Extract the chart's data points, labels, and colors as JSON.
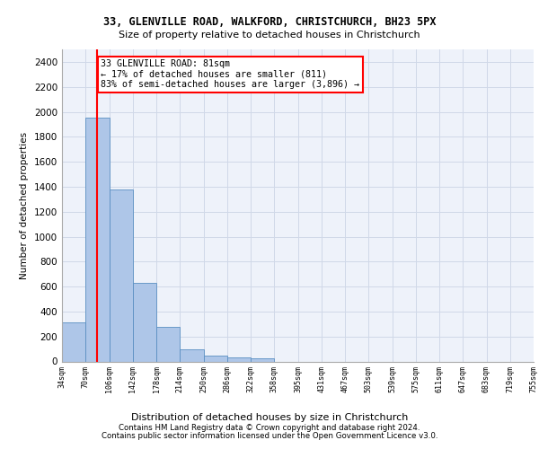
{
  "title1": "33, GLENVILLE ROAD, WALKFORD, CHRISTCHURCH, BH23 5PX",
  "title2": "Size of property relative to detached houses in Christchurch",
  "xlabel": "Distribution of detached houses by size in Christchurch",
  "ylabel": "Number of detached properties",
  "bar_values": [
    315,
    1950,
    1380,
    630,
    275,
    100,
    48,
    32,
    25,
    0,
    0,
    0,
    0,
    0,
    0,
    0,
    0,
    0,
    0,
    0
  ],
  "bin_labels": [
    "34sqm",
    "70sqm",
    "106sqm",
    "142sqm",
    "178sqm",
    "214sqm",
    "250sqm",
    "286sqm",
    "322sqm",
    "358sqm",
    "395sqm",
    "431sqm",
    "467sqm",
    "503sqm",
    "539sqm",
    "575sqm",
    "611sqm",
    "647sqm",
    "683sqm",
    "719sqm",
    "755sqm"
  ],
  "bar_color": "#aec6e8",
  "bar_edge_color": "#5a8fc2",
  "red_line_bin": 1,
  "annotation_text": "33 GLENVILLE ROAD: 81sqm\n← 17% of detached houses are smaller (811)\n83% of semi-detached houses are larger (3,896) →",
  "annotation_box_color": "white",
  "annotation_box_edge_color": "red",
  "red_line_color": "red",
  "ylim": [
    0,
    2500
  ],
  "yticks": [
    0,
    200,
    400,
    600,
    800,
    1000,
    1200,
    1400,
    1600,
    1800,
    2000,
    2200,
    2400
  ],
  "grid_color": "#d0d8e8",
  "bg_color": "#eef2fa",
  "footer1": "Contains HM Land Registry data © Crown copyright and database right 2024.",
  "footer2": "Contains public sector information licensed under the Open Government Licence v3.0."
}
